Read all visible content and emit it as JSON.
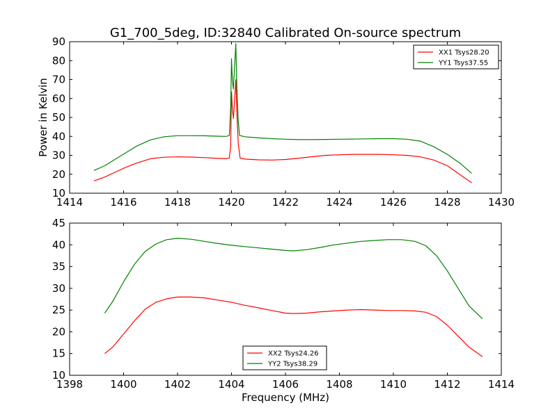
{
  "chart_data": [
    {
      "type": "line",
      "title": "G1_700_5deg, ID:32840 Calibrated On-source spectrum",
      "xlabel": "",
      "ylabel": "Power in Kelvin",
      "xlim": [
        1414,
        1430
      ],
      "ylim": [
        10,
        90
      ],
      "xticks": [
        1414,
        1416,
        1418,
        1420,
        1422,
        1424,
        1426,
        1428,
        1430
      ],
      "yticks": [
        10,
        20,
        30,
        40,
        50,
        60,
        70,
        80,
        90
      ],
      "grid": false,
      "legend_position": "top-right",
      "series": [
        {
          "name": "XX1 Tsys28.20",
          "color": "#ff0000",
          "points": [
            [
              1414.9,
              16.5
            ],
            [
              1415.3,
              18.5
            ],
            [
              1415.7,
              21.2
            ],
            [
              1416.1,
              23.8
            ],
            [
              1416.5,
              26.0
            ],
            [
              1417.0,
              28.2
            ],
            [
              1417.5,
              29.0
            ],
            [
              1418.0,
              29.2
            ],
            [
              1418.5,
              29.1
            ],
            [
              1419.0,
              28.8
            ],
            [
              1419.5,
              28.4
            ],
            [
              1419.8,
              28.2
            ],
            [
              1419.92,
              28.6
            ],
            [
              1419.97,
              35.0
            ],
            [
              1420.0,
              63.5
            ],
            [
              1420.03,
              55.0
            ],
            [
              1420.07,
              49.5
            ],
            [
              1420.12,
              60.0
            ],
            [
              1420.16,
              70.0
            ],
            [
              1420.2,
              52.0
            ],
            [
              1420.25,
              36.0
            ],
            [
              1420.32,
              28.5
            ],
            [
              1420.5,
              28.0
            ],
            [
              1421.0,
              27.6
            ],
            [
              1421.5,
              27.5
            ],
            [
              1422.0,
              27.8
            ],
            [
              1422.5,
              28.5
            ],
            [
              1423.0,
              29.3
            ],
            [
              1423.5,
              30.0
            ],
            [
              1424.0,
              30.3
            ],
            [
              1424.5,
              30.5
            ],
            [
              1425.0,
              30.5
            ],
            [
              1425.5,
              30.5
            ],
            [
              1426.0,
              30.3
            ],
            [
              1426.5,
              30.0
            ],
            [
              1427.0,
              29.2
            ],
            [
              1427.5,
              27.5
            ],
            [
              1428.0,
              24.5
            ],
            [
              1428.5,
              19.5
            ],
            [
              1428.9,
              15.5
            ]
          ]
        },
        {
          "name": "YY1 Tsys37.55",
          "color": "#008000",
          "points": [
            [
              1414.9,
              22.0
            ],
            [
              1415.3,
              24.5
            ],
            [
              1415.7,
              28.0
            ],
            [
              1416.1,
              31.5
            ],
            [
              1416.5,
              35.0
            ],
            [
              1417.0,
              38.2
            ],
            [
              1417.5,
              39.8
            ],
            [
              1418.0,
              40.4
            ],
            [
              1418.5,
              40.4
            ],
            [
              1419.0,
              40.3
            ],
            [
              1419.5,
              40.1
            ],
            [
              1419.8,
              40.0
            ],
            [
              1419.92,
              40.5
            ],
            [
              1419.97,
              55.0
            ],
            [
              1420.0,
              81.0
            ],
            [
              1420.03,
              70.0
            ],
            [
              1420.07,
              65.0
            ],
            [
              1420.12,
              78.0
            ],
            [
              1420.16,
              89.0
            ],
            [
              1420.2,
              65.0
            ],
            [
              1420.25,
              48.0
            ],
            [
              1420.3,
              40.5
            ],
            [
              1420.5,
              39.8
            ],
            [
              1421.0,
              39.2
            ],
            [
              1421.5,
              38.8
            ],
            [
              1422.0,
              38.5
            ],
            [
              1422.5,
              38.3
            ],
            [
              1423.0,
              38.3
            ],
            [
              1423.5,
              38.4
            ],
            [
              1424.0,
              38.5
            ],
            [
              1424.5,
              38.6
            ],
            [
              1425.0,
              38.7
            ],
            [
              1425.5,
              38.8
            ],
            [
              1426.0,
              38.8
            ],
            [
              1426.5,
              38.5
            ],
            [
              1427.0,
              37.5
            ],
            [
              1427.5,
              34.5
            ],
            [
              1428.0,
              30.5
            ],
            [
              1428.5,
              25.5
            ],
            [
              1428.9,
              20.5
            ]
          ]
        }
      ]
    },
    {
      "type": "line",
      "title": "",
      "xlabel": "Frequency (MHz)",
      "ylabel": "",
      "xlim": [
        1398,
        1414
      ],
      "ylim": [
        10,
        45
      ],
      "xticks": [
        1398,
        1400,
        1402,
        1404,
        1406,
        1408,
        1410,
        1412,
        1414
      ],
      "yticks": [
        10,
        15,
        20,
        25,
        30,
        35,
        40,
        45
      ],
      "grid": false,
      "legend_position": "bottom-center",
      "series": [
        {
          "name": "XX2 Tsys24.26",
          "color": "#ff0000",
          "points": [
            [
              1399.3,
              15.0
            ],
            [
              1399.6,
              16.5
            ],
            [
              1400.0,
              19.5
            ],
            [
              1400.4,
              22.5
            ],
            [
              1400.8,
              25.2
            ],
            [
              1401.2,
              26.8
            ],
            [
              1401.6,
              27.6
            ],
            [
              1402.0,
              28.0
            ],
            [
              1402.5,
              28.0
            ],
            [
              1403.0,
              27.8
            ],
            [
              1403.5,
              27.3
            ],
            [
              1404.0,
              26.8
            ],
            [
              1404.5,
              26.1
            ],
            [
              1405.0,
              25.5
            ],
            [
              1405.5,
              24.9
            ],
            [
              1406.0,
              24.3
            ],
            [
              1406.3,
              24.2
            ],
            [
              1406.8,
              24.3
            ],
            [
              1407.3,
              24.6
            ],
            [
              1407.8,
              24.8
            ],
            [
              1408.3,
              25.0
            ],
            [
              1408.8,
              25.1
            ],
            [
              1409.3,
              25.0
            ],
            [
              1409.8,
              24.9
            ],
            [
              1410.3,
              24.9
            ],
            [
              1410.8,
              24.8
            ],
            [
              1411.2,
              24.5
            ],
            [
              1411.6,
              23.5
            ],
            [
              1412.0,
              21.5
            ],
            [
              1412.4,
              19.0
            ],
            [
              1412.8,
              16.5
            ],
            [
              1413.3,
              14.3
            ]
          ]
        },
        {
          "name": "YY2 Tsys38.29",
          "color": "#008000",
          "points": [
            [
              1399.3,
              24.3
            ],
            [
              1399.6,
              27.0
            ],
            [
              1400.0,
              31.5
            ],
            [
              1400.4,
              35.5
            ],
            [
              1400.8,
              38.5
            ],
            [
              1401.2,
              40.2
            ],
            [
              1401.6,
              41.2
            ],
            [
              1402.0,
              41.5
            ],
            [
              1402.5,
              41.3
            ],
            [
              1403.0,
              40.8
            ],
            [
              1403.5,
              40.3
            ],
            [
              1404.0,
              39.9
            ],
            [
              1404.5,
              39.6
            ],
            [
              1405.0,
              39.3
            ],
            [
              1405.5,
              39.0
            ],
            [
              1406.0,
              38.7
            ],
            [
              1406.3,
              38.6
            ],
            [
              1406.8,
              38.9
            ],
            [
              1407.3,
              39.4
            ],
            [
              1407.8,
              40.0
            ],
            [
              1408.3,
              40.4
            ],
            [
              1408.8,
              40.8
            ],
            [
              1409.3,
              41.0
            ],
            [
              1409.8,
              41.2
            ],
            [
              1410.3,
              41.2
            ],
            [
              1410.8,
              40.8
            ],
            [
              1411.2,
              39.8
            ],
            [
              1411.6,
              37.5
            ],
            [
              1412.0,
              34.0
            ],
            [
              1412.4,
              30.0
            ],
            [
              1412.8,
              26.0
            ],
            [
              1413.3,
              23.0
            ]
          ]
        }
      ]
    }
  ]
}
